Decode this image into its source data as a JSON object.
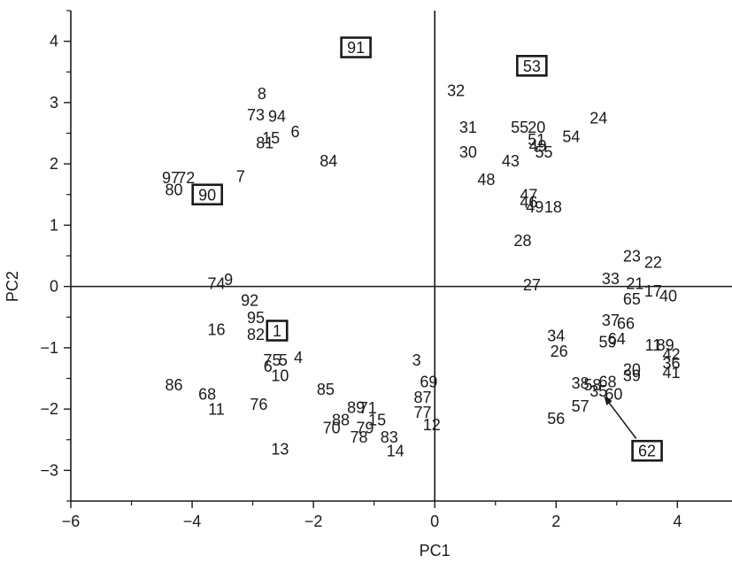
{
  "chart_data": {
    "type": "scatter",
    "title": "",
    "xlabel": "PC1",
    "ylabel": "PC2",
    "xlim": [
      -6,
      4.9
    ],
    "ylim": [
      -3.5,
      4.5
    ],
    "xticks": [
      -6,
      -4,
      -2,
      0,
      2,
      4
    ],
    "yticks": [
      -3,
      -2,
      -1,
      0,
      1,
      2,
      3,
      4
    ],
    "xtick_labels": [
      "−6",
      "−4",
      "−2",
      "0",
      "2",
      "4"
    ],
    "ytick_labels": [
      "−3",
      "−2",
      "−1",
      "0",
      "1",
      "2",
      "3",
      "4"
    ],
    "zero_lines": true,
    "grid": false,
    "points": [
      {
        "label": "91",
        "x": -1.3,
        "y": 3.9,
        "boxed": true
      },
      {
        "label": "53",
        "x": 1.6,
        "y": 3.6,
        "boxed": true
      },
      {
        "label": "90",
        "x": -3.75,
        "y": 1.5,
        "boxed": true
      },
      {
        "label": "1",
        "x": -2.6,
        "y": -0.72,
        "boxed": true
      },
      {
        "label": "62",
        "x": 3.5,
        "y": -2.68,
        "boxed": true
      },
      {
        "label": "8",
        "x": -2.85,
        "y": 3.15
      },
      {
        "label": "73",
        "x": -2.95,
        "y": 2.8
      },
      {
        "label": "94",
        "x": -2.6,
        "y": 2.78
      },
      {
        "label": "6",
        "x": -2.3,
        "y": 2.53
      },
      {
        "label": "15",
        "x": -2.7,
        "y": 2.43
      },
      {
        "label": "81",
        "x": -2.8,
        "y": 2.35
      },
      {
        "label": "84",
        "x": -1.75,
        "y": 2.05
      },
      {
        "label": "7",
        "x": -3.2,
        "y": 1.8
      },
      {
        "label": "97",
        "x": -4.35,
        "y": 1.78
      },
      {
        "label": "72",
        "x": -4.1,
        "y": 1.78
      },
      {
        "label": "80",
        "x": -4.3,
        "y": 1.58
      },
      {
        "label": "74",
        "x": -3.6,
        "y": 0.05
      },
      {
        "label": "9",
        "x": -3.4,
        "y": 0.12
      },
      {
        "label": "92",
        "x": -3.05,
        "y": -0.22
      },
      {
        "label": "95",
        "x": -2.95,
        "y": -0.5
      },
      {
        "label": "16",
        "x": -3.6,
        "y": -0.7
      },
      {
        "label": "82",
        "x": -2.95,
        "y": -0.78
      },
      {
        "label": "75",
        "x": -2.68,
        "y": -1.2
      },
      {
        "label": "5",
        "x": -2.5,
        "y": -1.2
      },
      {
        "label": "4",
        "x": -2.25,
        "y": -1.15
      },
      {
        "label": "6",
        "x": -2.75,
        "y": -1.3
      },
      {
        "label": "10",
        "x": -2.55,
        "y": -1.45
      },
      {
        "label": "86",
        "x": -4.3,
        "y": -1.6
      },
      {
        "label": "68",
        "x": -3.75,
        "y": -1.75
      },
      {
        "label": "11",
        "x": -3.6,
        "y": -2.0
      },
      {
        "label": "76",
        "x": -2.9,
        "y": -1.92
      },
      {
        "label": "85",
        "x": -1.8,
        "y": -1.67
      },
      {
        "label": "89",
        "x": -1.3,
        "y": -1.97
      },
      {
        "label": "71",
        "x": -1.1,
        "y": -1.98
      },
      {
        "label": "88",
        "x": -1.55,
        "y": -2.17
      },
      {
        "label": "15",
        "x": -0.95,
        "y": -2.17
      },
      {
        "label": "70",
        "x": -1.7,
        "y": -2.3
      },
      {
        "label": "79",
        "x": -1.15,
        "y": -2.3
      },
      {
        "label": "78",
        "x": -1.25,
        "y": -2.45
      },
      {
        "label": "83",
        "x": -0.75,
        "y": -2.45
      },
      {
        "label": "14",
        "x": -0.65,
        "y": -2.68
      },
      {
        "label": "13",
        "x": -2.55,
        "y": -2.65
      },
      {
        "label": "3",
        "x": -0.3,
        "y": -1.2
      },
      {
        "label": "69",
        "x": -0.1,
        "y": -1.55
      },
      {
        "label": "87",
        "x": -0.2,
        "y": -1.8
      },
      {
        "label": "77",
        "x": -0.2,
        "y": -2.05
      },
      {
        "label": "12",
        "x": -0.05,
        "y": -2.25
      },
      {
        "label": "32",
        "x": 0.35,
        "y": 3.2
      },
      {
        "label": "31",
        "x": 0.55,
        "y": 2.6
      },
      {
        "label": "30",
        "x": 0.55,
        "y": 2.2
      },
      {
        "label": "55",
        "x": 1.4,
        "y": 2.6
      },
      {
        "label": "20",
        "x": 1.68,
        "y": 2.6
      },
      {
        "label": "24",
        "x": 2.7,
        "y": 2.75
      },
      {
        "label": "51",
        "x": 1.68,
        "y": 2.4
      },
      {
        "label": "49",
        "x": 1.7,
        "y": 2.3
      },
      {
        "label": "54",
        "x": 2.25,
        "y": 2.45
      },
      {
        "label": "55",
        "x": 1.8,
        "y": 2.2
      },
      {
        "label": "43",
        "x": 1.25,
        "y": 2.05
      },
      {
        "label": "48",
        "x": 0.85,
        "y": 1.75
      },
      {
        "label": "47",
        "x": 1.55,
        "y": 1.5
      },
      {
        "label": "46",
        "x": 1.55,
        "y": 1.38
      },
      {
        "label": "49",
        "x": 1.65,
        "y": 1.3
      },
      {
        "label": "18",
        "x": 1.95,
        "y": 1.3
      },
      {
        "label": "28",
        "x": 1.45,
        "y": 0.75
      },
      {
        "label": "27",
        "x": 1.6,
        "y": 0.03
      },
      {
        "label": "23",
        "x": 3.25,
        "y": 0.5
      },
      {
        "label": "22",
        "x": 3.6,
        "y": 0.4
      },
      {
        "label": "33",
        "x": 2.9,
        "y": 0.13
      },
      {
        "label": "21",
        "x": 3.3,
        "y": 0.05
      },
      {
        "label": "17",
        "x": 3.6,
        "y": -0.07
      },
      {
        "label": "40",
        "x": 3.85,
        "y": -0.15
      },
      {
        "label": "65",
        "x": 3.25,
        "y": -0.2
      },
      {
        "label": "37",
        "x": 2.9,
        "y": -0.55
      },
      {
        "label": "66",
        "x": 3.15,
        "y": -0.6
      },
      {
        "label": "34",
        "x": 2.0,
        "y": -0.8
      },
      {
        "label": "59",
        "x": 2.85,
        "y": -0.9
      },
      {
        "label": "64",
        "x": 3.0,
        "y": -0.85
      },
      {
        "label": "26",
        "x": 2.05,
        "y": -1.05
      },
      {
        "label": "11",
        "x": 3.6,
        "y": -0.95
      },
      {
        "label": "89",
        "x": 3.8,
        "y": -0.95
      },
      {
        "label": "42",
        "x": 3.9,
        "y": -1.1
      },
      {
        "label": "36",
        "x": 3.9,
        "y": -1.25
      },
      {
        "label": "20",
        "x": 3.25,
        "y": -1.35
      },
      {
        "label": "39",
        "x": 3.25,
        "y": -1.45
      },
      {
        "label": "41",
        "x": 3.9,
        "y": -1.4
      },
      {
        "label": "38",
        "x": 2.4,
        "y": -1.57
      },
      {
        "label": "58",
        "x": 2.6,
        "y": -1.6
      },
      {
        "label": "68",
        "x": 2.85,
        "y": -1.55
      },
      {
        "label": "35",
        "x": 2.7,
        "y": -1.7
      },
      {
        "label": "60",
        "x": 2.95,
        "y": -1.75
      },
      {
        "label": "57",
        "x": 2.4,
        "y": -1.95
      },
      {
        "label": "56",
        "x": 2.0,
        "y": -2.15
      }
    ],
    "annotations": [
      {
        "type": "arrow",
        "from_label": "62",
        "from": [
          3.32,
          -2.48
        ],
        "to": [
          2.8,
          -1.8
        ]
      }
    ]
  }
}
